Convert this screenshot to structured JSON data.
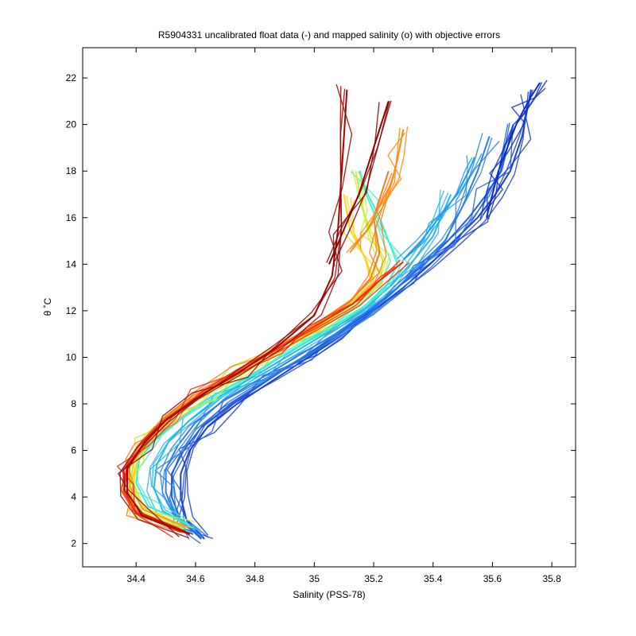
{
  "chart_data": {
    "type": "line",
    "title": "R5904331 uncalibrated float data (-) and mapped salinity (o) with objective errors",
    "xlabel": "Salinity (PSS-78)",
    "ylabel": "θ ˚C",
    "xlim": [
      34.22,
      35.88
    ],
    "ylim": [
      1.0,
      23.3
    ],
    "xticks": [
      34.4,
      34.6,
      34.8,
      35,
      35.2,
      35.4,
      35.6,
      35.8
    ],
    "xtick_labels": [
      "34.4",
      "34.6",
      "34.8",
      "35",
      "35.2",
      "35.4",
      "35.6",
      "35.8"
    ],
    "yticks": [
      2,
      4,
      6,
      8,
      10,
      12,
      14,
      16,
      18,
      20,
      22
    ],
    "ytick_labels": [
      "2",
      "4",
      "6",
      "8",
      "10",
      "12",
      "14",
      "16",
      "18",
      "20",
      "22"
    ],
    "grid": false,
    "legend": "none",
    "colormap": "jet",
    "series": [
      {
        "color": "#1a3fd6",
        "x": [
          34.63,
          34.57,
          34.55,
          34.55,
          34.58,
          34.64,
          34.74,
          34.86,
          34.98,
          35.1,
          35.2,
          35.3,
          35.39,
          35.47,
          35.55,
          35.61,
          35.66,
          35.7,
          35.73
        ],
        "y": [
          2.2,
          3.0,
          4.0,
          5.0,
          6.0,
          7.0,
          8.0,
          9.0,
          10.0,
          11.0,
          12.0,
          13.0,
          14.0,
          15.0,
          16.0,
          17.0,
          18.0,
          19.5,
          21.5
        ]
      },
      {
        "color": "#1f5fe0",
        "x": [
          34.62,
          34.55,
          34.52,
          34.52,
          34.56,
          34.62,
          34.72,
          34.84,
          34.96,
          35.08,
          35.19,
          35.28,
          35.37,
          35.45,
          35.52,
          35.58,
          35.63,
          35.67
        ],
        "y": [
          2.2,
          3.0,
          4.0,
          5.0,
          6.0,
          7.0,
          8.0,
          9.0,
          10.0,
          11.0,
          12.0,
          13.0,
          14.0,
          15.0,
          16.0,
          17.0,
          18.0,
          20.0
        ]
      },
      {
        "color": "#2b7fe8",
        "x": [
          34.61,
          34.53,
          34.5,
          34.5,
          34.54,
          34.6,
          34.7,
          34.82,
          34.95,
          35.07,
          35.18,
          35.28,
          35.36,
          35.44,
          35.5,
          35.55,
          35.59
        ],
        "y": [
          2.4,
          3.2,
          4.2,
          5.2,
          6.2,
          7.2,
          8.2,
          9.1,
          10.1,
          11.0,
          12.0,
          13.0,
          14.0,
          15.0,
          16.5,
          18.0,
          19.5
        ]
      },
      {
        "color": "#27b8f0",
        "x": [
          34.6,
          34.49,
          34.46,
          34.47,
          34.51,
          34.58,
          34.68,
          34.8,
          34.93,
          35.05,
          35.17,
          35.26,
          35.33,
          35.4,
          35.46
        ],
        "y": [
          2.6,
          3.4,
          4.4,
          5.4,
          6.4,
          7.3,
          8.3,
          9.2,
          10.2,
          11.1,
          12.1,
          13.1,
          14.1,
          15.2,
          17.0
        ]
      },
      {
        "color": "#3ff0c8",
        "x": [
          34.58,
          34.44,
          34.4,
          34.41,
          34.46,
          34.54,
          34.65,
          34.78,
          34.91,
          35.04,
          35.16,
          35.24,
          35.28,
          35.25,
          35.22,
          35.18,
          35.15
        ],
        "y": [
          2.8,
          3.6,
          4.6,
          5.6,
          6.4,
          7.3,
          8.3,
          9.2,
          10.2,
          11.1,
          12.1,
          13.0,
          14.0,
          15.0,
          16.0,
          17.0,
          18.0
        ]
      },
      {
        "color": "#c8f03a",
        "x": [
          34.57,
          34.42,
          34.38,
          34.39,
          34.44,
          34.52,
          34.63,
          34.76,
          34.89,
          35.02,
          35.14,
          35.22,
          35.23,
          35.19,
          35.16,
          35.14
        ],
        "y": [
          2.7,
          3.5,
          4.5,
          5.5,
          6.4,
          7.4,
          8.4,
          9.3,
          10.3,
          11.2,
          12.2,
          13.2,
          14.2,
          15.2,
          16.5,
          18.0
        ]
      },
      {
        "color": "#ffd21a",
        "x": [
          34.56,
          34.41,
          34.37,
          34.38,
          34.43,
          34.51,
          34.62,
          34.75,
          34.88,
          35.01,
          35.13,
          35.2,
          35.17,
          35.12,
          35.1
        ],
        "y": [
          2.6,
          3.4,
          4.4,
          5.4,
          6.4,
          7.4,
          8.4,
          9.4,
          10.4,
          11.3,
          12.3,
          13.3,
          14.3,
          15.5,
          17.0
        ]
      },
      {
        "color": "#ff7a10",
        "x": [
          34.55,
          34.4,
          34.36,
          34.37,
          34.42,
          34.5,
          34.61,
          34.74,
          34.87,
          35.0,
          35.12,
          35.19,
          35.22,
          35.2,
          35.25
        ],
        "y": [
          2.6,
          3.4,
          4.4,
          5.4,
          6.4,
          7.4,
          8.4,
          9.4,
          10.4,
          11.4,
          12.4,
          13.4,
          14.5,
          16.0,
          18.0
        ]
      },
      {
        "color": "#f02a0a",
        "x": [
          34.55,
          34.4,
          34.36,
          34.37,
          34.43,
          34.51,
          34.62,
          34.75,
          34.88,
          35.01,
          35.13,
          35.22,
          35.3
        ],
        "y": [
          2.5,
          3.3,
          4.3,
          5.3,
          6.4,
          7.4,
          8.4,
          9.4,
          10.4,
          11.4,
          12.3,
          13.3,
          14.1
        ]
      },
      {
        "color": "#a00606",
        "x": [
          34.58,
          34.42,
          34.37,
          34.37,
          34.42,
          34.5,
          34.61,
          34.74,
          34.87,
          35.0,
          35.06,
          35.08,
          35.09,
          35.1,
          35.11
        ],
        "y": [
          2.4,
          3.2,
          4.2,
          5.2,
          6.2,
          7.3,
          8.3,
          9.3,
          10.4,
          11.8,
          13.5,
          15.5,
          17.5,
          19.5,
          21.5
        ]
      },
      {
        "color": "#0d2fc8",
        "x": [
          35.58,
          35.6,
          35.62,
          35.65,
          35.68,
          35.7,
          35.73,
          35.76
        ],
        "y": [
          16.0,
          17.0,
          18.0,
          19.0,
          20.0,
          20.5,
          21.2,
          21.8
        ]
      },
      {
        "color": "#1e9ef0",
        "x": [
          35.3,
          35.36,
          35.42,
          35.48,
          35.52,
          35.54
        ],
        "y": [
          14.2,
          15.0,
          16.0,
          17.0,
          18.0,
          18.6
        ]
      },
      {
        "color": "#ff8a14",
        "x": [
          35.12,
          35.18,
          35.22,
          35.26,
          35.28,
          35.3
        ],
        "y": [
          14.5,
          15.5,
          16.5,
          17.5,
          18.5,
          19.8
        ]
      },
      {
        "color": "#8c0404",
        "x": [
          35.05,
          35.1,
          35.15,
          35.2,
          35.25
        ],
        "y": [
          14.0,
          15.5,
          17.0,
          19.0,
          21.0
        ]
      }
    ]
  }
}
